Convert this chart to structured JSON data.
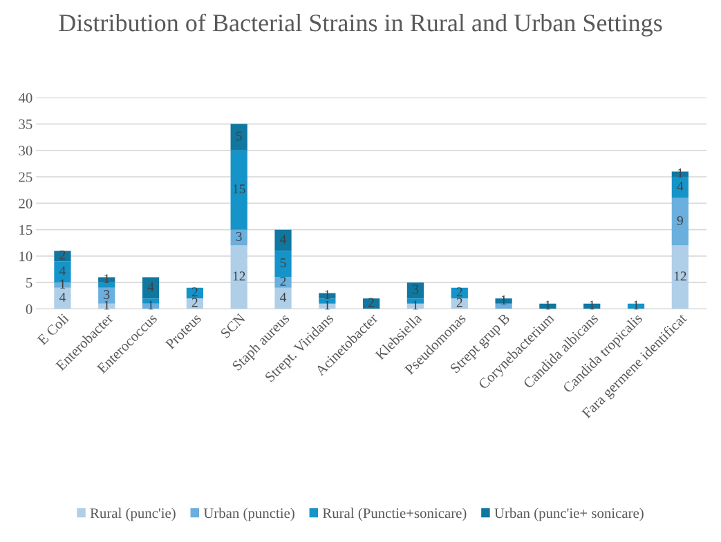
{
  "chart_data": {
    "type": "bar",
    "title": "Distribution of Bacterial Strains in Rural and Urban Settings",
    "categories": [
      "E Coli",
      "Enterobacter",
      "Enterococcus",
      "Proteus",
      "SCN",
      "Staph aureus",
      "Strept. Viridans",
      "Acinetobacter",
      "Klebsiella",
      "Pseudomonas",
      "Strept grup B",
      "Corynebacterium",
      "Candida albicans",
      "Candida tropicalis",
      "Fara germene identificat"
    ],
    "series": [
      {
        "name": "Rural (punc'ie)",
        "color": "#afcfe9",
        "values": [
          4,
          1,
          0,
          2,
          12,
          4,
          1,
          0,
          1,
          2,
          0,
          0,
          0,
          0,
          12
        ],
        "value_labels": [
          "4",
          "1",
          null,
          "2",
          "12",
          "4",
          "1",
          null,
          "1",
          "2",
          null,
          null,
          null,
          null,
          "12"
        ]
      },
      {
        "name": "Urban (punctie)",
        "color": "#6aafdd",
        "values": [
          1,
          3,
          1,
          0,
          3,
          2,
          0,
          0,
          0,
          0,
          1,
          0,
          0,
          0,
          9
        ],
        "value_labels": [
          "1",
          "3",
          "1",
          null,
          "3",
          "2",
          null,
          null,
          null,
          null,
          null,
          null,
          null,
          null,
          "9"
        ]
      },
      {
        "name": "Rural (Punctie+sonicare)",
        "color": "#1594c9",
        "values": [
          4,
          1,
          1,
          2,
          15,
          5,
          1,
          0,
          1,
          2,
          0,
          0,
          0,
          1,
          4
        ],
        "value_labels": [
          "4",
          null,
          null,
          "2",
          "15",
          "5",
          null,
          null,
          null,
          "2",
          null,
          null,
          null,
          "1",
          "4"
        ]
      },
      {
        "name": "Urban (punc'ie+ sonicare)",
        "color": "#0f77a0",
        "values": [
          2,
          1,
          4,
          0,
          5,
          4,
          1,
          2,
          3,
          0,
          1,
          1,
          1,
          0,
          1
        ],
        "value_labels": [
          "2",
          "1",
          "4",
          null,
          "5",
          "4",
          "1",
          "2",
          "3",
          null,
          "1",
          "1",
          "1",
          null,
          "1"
        ]
      }
    ],
    "stacked": true,
    "ylim": [
      0,
      40
    ],
    "yticks": [
      0,
      5,
      10,
      15,
      20,
      25,
      30,
      35,
      40
    ],
    "grid": "y",
    "legend": "bottom"
  }
}
